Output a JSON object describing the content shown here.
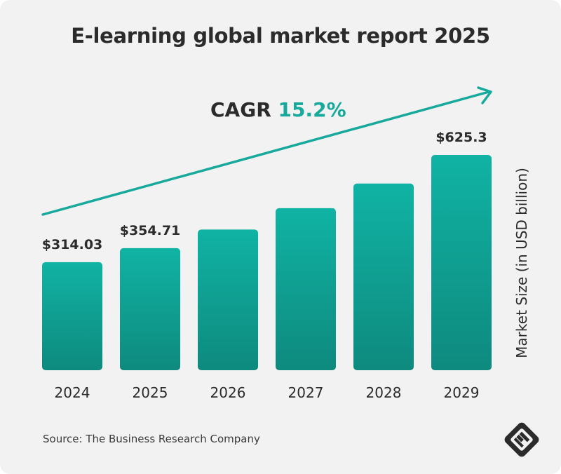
{
  "title": "E-learning global market report 2025",
  "cagr": {
    "label": "CAGR",
    "value": "15.2%"
  },
  "source": "Source: The Business Research Company",
  "colors": {
    "bar_top": "#10b3a4",
    "bar_bottom": "#0e8a7e",
    "accent": "#17a99b",
    "text": "#2b2b2b",
    "background": "#f2f2f2"
  },
  "logo_icon": "brand-logo-icon",
  "chart_data": {
    "type": "bar",
    "title": "E-learning global market report 2025",
    "categories": [
      "2024",
      "2025",
      "2026",
      "2027",
      "2028",
      "2029"
    ],
    "values": [
      314.03,
      354.71,
      408.6,
      470.7,
      542.2,
      625.3
    ],
    "data_labels": [
      "$314.03",
      "$354.71",
      "",
      "",
      "",
      "$625.3"
    ],
    "ylabel": "Market Size (in USD billion)",
    "xlabel": "",
    "ylim": [
      0,
      800
    ],
    "grid": false,
    "annotation": "CAGR 15.2%"
  }
}
